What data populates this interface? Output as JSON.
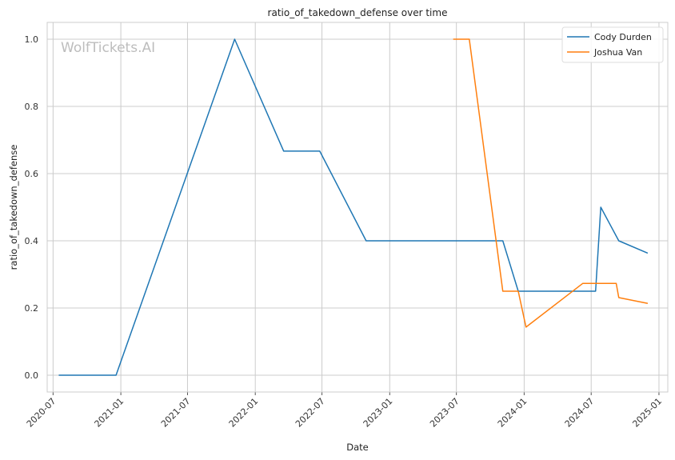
{
  "chart_data": {
    "type": "line",
    "title": "ratio_of_takedown_defense over time",
    "xlabel": "Date",
    "ylabel": "ratio_of_takedown_defense",
    "watermark": "WolfTickets.AI",
    "xlim": [
      "2020-06-15",
      "2025-01-25"
    ],
    "ylim": [
      -0.05,
      1.05
    ],
    "x_ticks": [
      "2020-07",
      "2021-01",
      "2021-07",
      "2022-01",
      "2022-07",
      "2023-01",
      "2023-07",
      "2024-01",
      "2024-07",
      "2025-01"
    ],
    "y_ticks": [
      "0.0",
      "0.2",
      "0.4",
      "0.6",
      "0.8",
      "1.0"
    ],
    "grid": true,
    "legend_position": "top-right",
    "series": [
      {
        "name": "Cody Durden",
        "color": "#1f77b4",
        "points": [
          [
            "2020-07-18",
            0.0
          ],
          [
            "2020-12-19",
            0.0
          ],
          [
            "2021-11-06",
            1.0
          ],
          [
            "2022-03-19",
            0.667
          ],
          [
            "2022-06-25",
            0.667
          ],
          [
            "2022-10-29",
            0.4
          ],
          [
            "2023-11-04",
            0.4
          ],
          [
            "2023-12-16",
            0.25
          ],
          [
            "2024-07-13",
            0.25
          ],
          [
            "2024-07-27",
            0.5
          ],
          [
            "2024-09-14",
            0.4
          ],
          [
            "2024-11-30",
            0.364
          ]
        ]
      },
      {
        "name": "Joshua Van",
        "color": "#ff7f0e",
        "points": [
          [
            "2023-06-24",
            1.0
          ],
          [
            "2023-08-05",
            1.0
          ],
          [
            "2023-11-04",
            0.25
          ],
          [
            "2023-12-16",
            0.25
          ],
          [
            "2024-01-06",
            0.143
          ],
          [
            "2024-06-08",
            0.273
          ],
          [
            "2024-09-07",
            0.273
          ],
          [
            "2024-09-14",
            0.231
          ],
          [
            "2024-11-30",
            0.214
          ]
        ]
      }
    ]
  }
}
